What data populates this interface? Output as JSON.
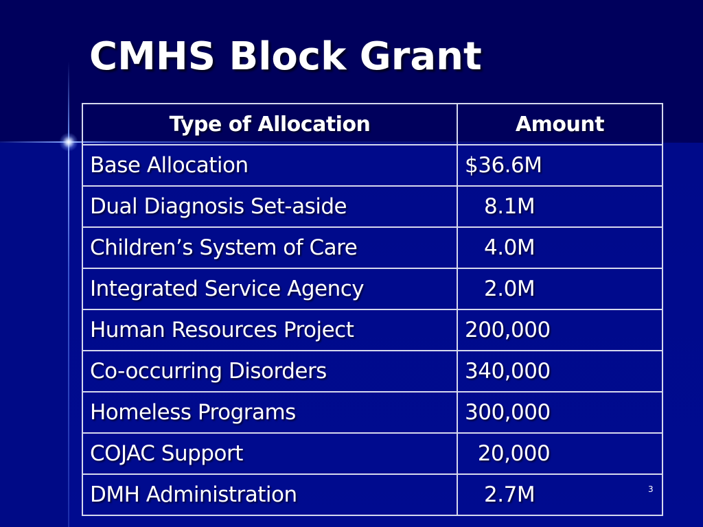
{
  "slide": {
    "title": "CMHS Block Grant",
    "page_number": "3"
  },
  "table": {
    "headers": [
      "Type of Allocation",
      "Amount"
    ],
    "rows": [
      {
        "type": "Base Allocation",
        "amount": "$36.6M"
      },
      {
        "type": "Dual Diagnosis Set-aside",
        "amount": "   8.1M"
      },
      {
        "type": "Children’s System of Care",
        "amount": "   4.0M"
      },
      {
        "type": "Integrated Service Agency",
        "amount": "   2.0M"
      },
      {
        "type": "Human Resources Project",
        "amount": "200,000"
      },
      {
        "type": "Co-occurring Disorders",
        "amount": "340,000"
      },
      {
        "type": "Homeless Programs",
        "amount": "300,000"
      },
      {
        "type": "COJAC Support",
        "amount": "  20,000"
      },
      {
        "type": "DMH Administration",
        "amount": "   2.7M"
      }
    ]
  }
}
